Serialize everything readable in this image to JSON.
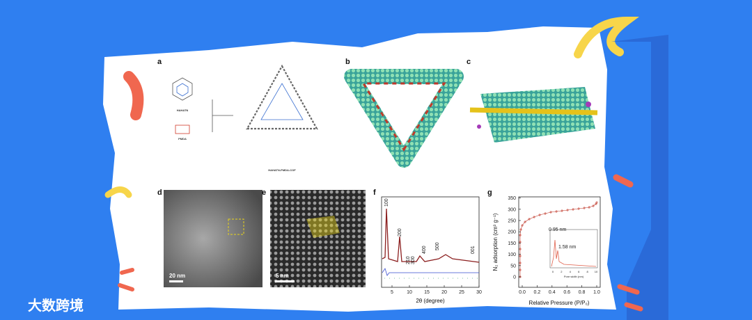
{
  "watermark": "大数跨境",
  "panels": {
    "a": {
      "label": "a",
      "texts": [
        "HAHATN",
        "PMDA",
        "HAHATN-PMDA-COF"
      ]
    },
    "b": {
      "label": "b"
    },
    "c": {
      "label": "c"
    },
    "d": {
      "label": "d",
      "scale": "20 nm"
    },
    "e": {
      "label": "e",
      "scale": "5 nm"
    },
    "f": {
      "label": "f",
      "x_label": "2θ (degree)",
      "x_ticks": [
        "5",
        "10",
        "15",
        "20",
        "25",
        "30"
      ],
      "peaks": [
        "100",
        "200",
        "210",
        "300",
        "400",
        "500",
        "001"
      ]
    },
    "g": {
      "label": "g",
      "x_label": "Relative Pressure (P/P₀)",
      "y_label": "N₂ adsorption (cm³ g⁻¹)",
      "x_ticks": [
        "0.0",
        "0.2",
        "0.4",
        "0.6",
        "0.8",
        "1.0"
      ],
      "y_ticks": [
        "0",
        "50",
        "100",
        "150",
        "200",
        "250",
        "300",
        "350"
      ],
      "inset": {
        "peaks": [
          "0.95 nm",
          "1.58 nm"
        ],
        "x_label": "Pore width (nm)",
        "x_ticks": [
          "0",
          "2",
          "4",
          "6",
          "8",
          "10"
        ]
      }
    }
  }
}
